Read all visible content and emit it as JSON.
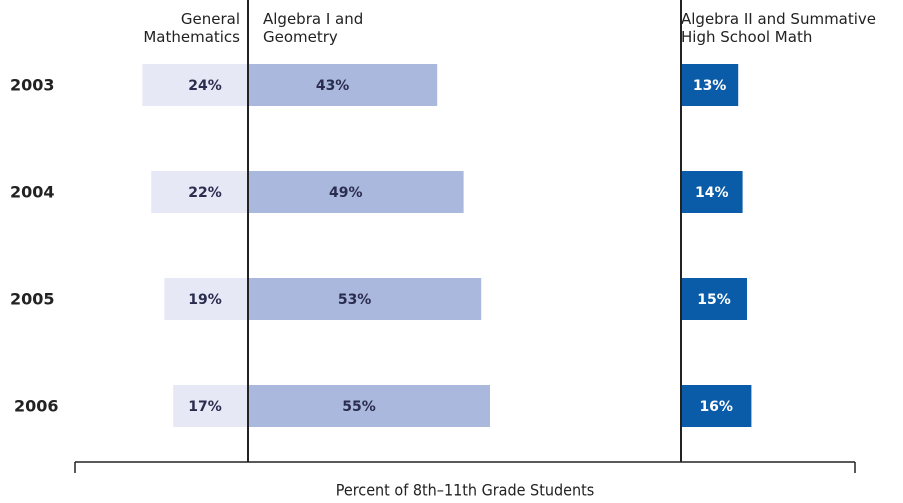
{
  "chart_data": {
    "type": "bar",
    "categories": [
      "2003",
      "2004",
      "2005",
      "2006"
    ],
    "series": [
      {
        "name": "General Mathematics",
        "color": "#e6e8f5",
        "values": [
          24,
          22,
          19,
          17
        ],
        "value_labels": [
          "24%",
          "22%",
          "19%",
          "17%"
        ]
      },
      {
        "name": "Algebra I and Geometry",
        "color": "#aab8dd",
        "values": [
          43,
          49,
          53,
          55
        ],
        "value_labels": [
          "43%",
          "49%",
          "53%",
          "55%"
        ]
      },
      {
        "name": "Algebra II and Summative High School Math",
        "color": "#0b5ca8",
        "values": [
          13,
          14,
          15,
          16
        ],
        "value_labels": [
          "13%",
          "14%",
          "15%",
          "16%"
        ]
      }
    ],
    "xlabel": "Percent of 8th–11th Grade Students"
  }
}
